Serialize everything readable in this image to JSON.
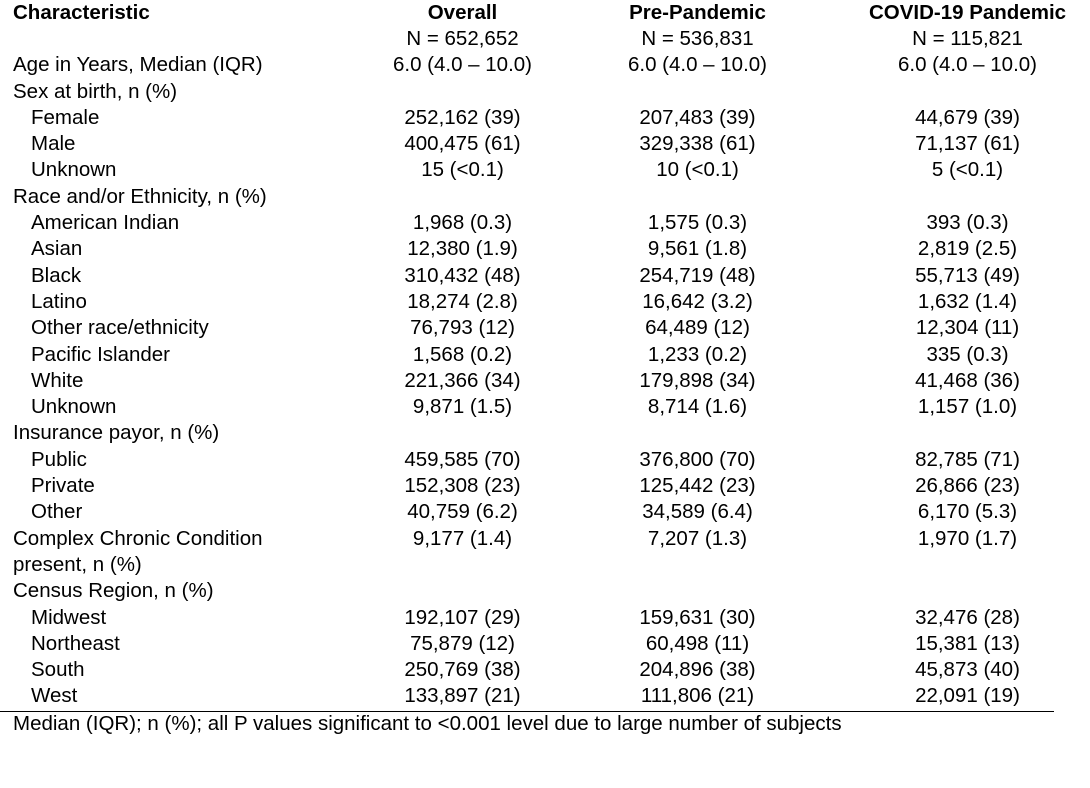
{
  "header": {
    "characteristic": "Characteristic",
    "columns": [
      {
        "title": "Overall",
        "n": "N = 652,652"
      },
      {
        "title": "Pre-Pandemic",
        "n": "N = 536,831"
      },
      {
        "title": "COVID-19 Pandemic",
        "n": "N = 115,821"
      }
    ]
  },
  "rows": [
    {
      "label": "Age in Years, Median (IQR)",
      "indent": false,
      "values": [
        "6.0 (4.0 – 10.0)",
        "6.0 (4.0 – 10.0)",
        "6.0 (4.0 – 10.0)"
      ]
    },
    {
      "label": "Sex at birth, n (%)",
      "indent": false,
      "values": [
        "",
        "",
        ""
      ]
    },
    {
      "label": "Female",
      "indent": true,
      "values": [
        "252,162 (39)",
        "207,483 (39)",
        "44,679 (39)"
      ]
    },
    {
      "label": "Male",
      "indent": true,
      "values": [
        "400,475 (61)",
        "329,338 (61)",
        "71,137 (61)"
      ]
    },
    {
      "label": "Unknown",
      "indent": true,
      "values": [
        "15 (<0.1)",
        "10 (<0.1)",
        "5 (<0.1)"
      ]
    },
    {
      "label": "Race and/or Ethnicity, n (%)",
      "indent": false,
      "values": [
        "",
        "",
        ""
      ]
    },
    {
      "label": "American Indian",
      "indent": true,
      "values": [
        "1,968 (0.3)",
        "1,575 (0.3)",
        "393 (0.3)"
      ]
    },
    {
      "label": "Asian",
      "indent": true,
      "values": [
        "12,380 (1.9)",
        "9,561 (1.8)",
        "2,819 (2.5)"
      ]
    },
    {
      "label": "Black",
      "indent": true,
      "values": [
        "310,432 (48)",
        "254,719 (48)",
        "55,713 (49)"
      ]
    },
    {
      "label": "Latino",
      "indent": true,
      "values": [
        "18,274 (2.8)",
        "16,642 (3.2)",
        "1,632 (1.4)"
      ]
    },
    {
      "label": "Other race/ethnicity",
      "indent": true,
      "values": [
        "76,793 (12)",
        "64,489 (12)",
        "12,304 (11)"
      ]
    },
    {
      "label": "Pacific Islander",
      "indent": true,
      "values": [
        "1,568 (0.2)",
        "1,233 (0.2)",
        "335 (0.3)"
      ]
    },
    {
      "label": "White",
      "indent": true,
      "values": [
        "221,366 (34)",
        "179,898 (34)",
        "41,468 (36)"
      ]
    },
    {
      "label": "Unknown",
      "indent": true,
      "values": [
        "9,871 (1.5)",
        "8,714 (1.6)",
        "1,157 (1.0)"
      ]
    },
    {
      "label": "Insurance payor, n (%)",
      "indent": false,
      "values": [
        "",
        "",
        ""
      ]
    },
    {
      "label": "Public",
      "indent": true,
      "values": [
        "459,585 (70)",
        "376,800 (70)",
        "82,785 (71)"
      ]
    },
    {
      "label": "Private",
      "indent": true,
      "values": [
        "152,308 (23)",
        "125,442 (23)",
        "26,866 (23)"
      ]
    },
    {
      "label": "Other",
      "indent": true,
      "values": [
        "40,759 (6.2)",
        "34,589 (6.4)",
        "6,170 (5.3)"
      ]
    },
    {
      "label": "Complex Chronic Condition",
      "indent": false,
      "values": [
        "9,177 (1.4)",
        "7,207 (1.3)",
        "1,970 (1.7)"
      ]
    },
    {
      "label": "present, n (%)",
      "indent": false,
      "values": [
        "",
        "",
        ""
      ]
    },
    {
      "label": "Census Region, n (%)",
      "indent": false,
      "values": [
        "",
        "",
        ""
      ]
    },
    {
      "label": "Midwest",
      "indent": true,
      "values": [
        "192,107 (29)",
        "159,631 (30)",
        "32,476 (28)"
      ]
    },
    {
      "label": "Northeast",
      "indent": true,
      "values": [
        "75,879 (12)",
        "60,498 (11)",
        "15,381 (13)"
      ]
    },
    {
      "label": "South",
      "indent": true,
      "values": [
        "250,769 (38)",
        "204,896 (38)",
        "45,873 (40)"
      ]
    },
    {
      "label": "West",
      "indent": true,
      "values": [
        "133,897 (21)",
        "111,806 (21)",
        "22,091 (19)"
      ]
    }
  ],
  "footnote": "Median (IQR); n (%); all P values significant to <0.001 level due to large number of subjects"
}
